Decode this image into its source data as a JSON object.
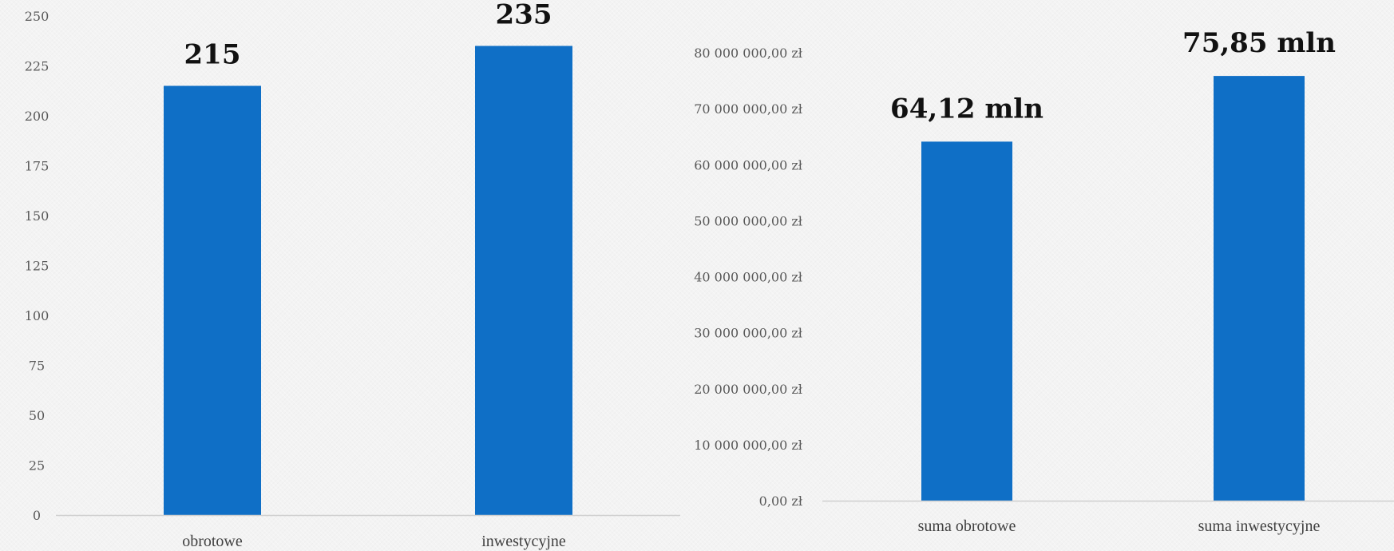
{
  "chart_data": [
    {
      "type": "bar",
      "categories": [
        "obrotowe",
        "inwestycyjne"
      ],
      "values": [
        215,
        235
      ],
      "data_labels": [
        "215",
        "235"
      ],
      "ylim": [
        0,
        250
      ],
      "yticks": [
        0,
        25,
        50,
        75,
        100,
        125,
        150,
        175,
        200,
        225,
        250
      ],
      "ytick_labels": [
        "0",
        "25",
        "50",
        "75",
        "100",
        "125",
        "150",
        "175",
        "200",
        "225",
        "250"
      ],
      "grid": false,
      "bar_color": "#0F6FC6"
    },
    {
      "type": "bar",
      "categories": [
        "suma obrotowe",
        "suma inwestycyjne"
      ],
      "values": [
        64120000,
        75850000
      ],
      "data_labels": [
        "64,12 mln",
        "75,85 mln"
      ],
      "ylim": [
        0,
        80000000
      ],
      "yticks": [
        0,
        10000000,
        20000000,
        30000000,
        40000000,
        50000000,
        60000000,
        70000000,
        80000000
      ],
      "ytick_labels": [
        "0,00 zł",
        "10 000 000,00 zł",
        "20 000 000,00 zł",
        "30 000 000,00 zł",
        "40 000 000,00 zł",
        "50 000 000,00 zł",
        "60 000 000,00 zł",
        "70 000 000,00 zł",
        "80 000 000,00 zł"
      ],
      "grid": false,
      "bar_color": "#0F6FC6"
    }
  ]
}
